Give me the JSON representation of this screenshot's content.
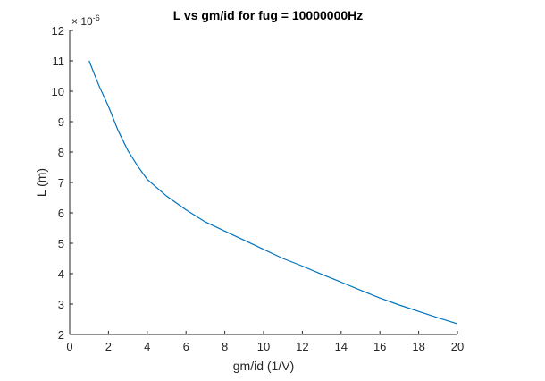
{
  "chart_data": {
    "type": "line",
    "title": "L vs gm/id for fug = 10000000Hz",
    "xlabel": "gm/id (1/V)",
    "ylabel": "L (m)",
    "y_exponent_label": "× 10",
    "y_exponent_power": "-6",
    "xlim": [
      0,
      20
    ],
    "ylim": [
      2,
      12
    ],
    "xticks": [
      0,
      2,
      4,
      6,
      8,
      10,
      12,
      14,
      16,
      18,
      20
    ],
    "yticks": [
      2,
      3,
      4,
      5,
      6,
      7,
      8,
      9,
      10,
      11,
      12
    ],
    "grid": false,
    "line_color": "#0072BD",
    "series": [
      {
        "name": "L",
        "x": [
          1,
          1.5,
          2,
          2.5,
          3,
          3.5,
          4,
          5,
          6,
          7,
          8,
          9,
          10,
          11,
          12,
          13,
          14,
          15,
          16,
          17,
          18,
          19,
          20
        ],
        "values": [
          11.0,
          10.2,
          9.5,
          8.7,
          8.05,
          7.55,
          7.1,
          6.55,
          6.1,
          5.7,
          5.4,
          5.1,
          4.8,
          4.5,
          4.25,
          3.98,
          3.72,
          3.46,
          3.2,
          2.97,
          2.76,
          2.55,
          2.35
        ]
      }
    ]
  }
}
